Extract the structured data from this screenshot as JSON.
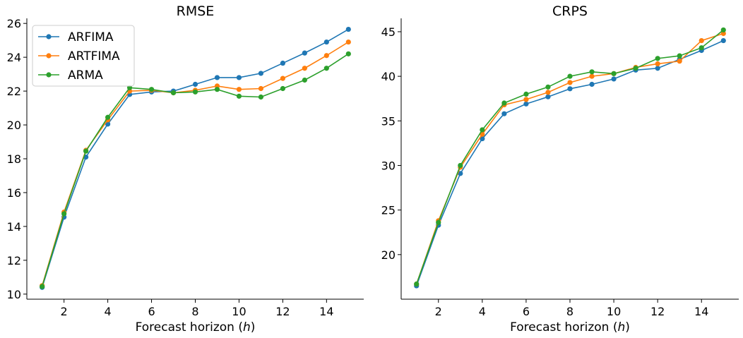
{
  "chart_data": [
    {
      "type": "line",
      "title": "RMSE",
      "xlabel": "Forecast horizon",
      "xlabel_var": "h",
      "ylabel": "",
      "xlim": [
        0.3,
        15.7
      ],
      "ylim": [
        9.7,
        26.3
      ],
      "xticks": [
        2,
        4,
        6,
        8,
        10,
        12,
        14
      ],
      "yticks": [
        10,
        12,
        14,
        16,
        18,
        20,
        22,
        24,
        26
      ],
      "x": [
        1,
        2,
        3,
        4,
        5,
        6,
        7,
        8,
        9,
        10,
        11,
        12,
        13,
        14,
        15
      ],
      "legend_position": "upper-left",
      "series": [
        {
          "name": "ARFIMA",
          "color": "#1f77b4",
          "values": [
            10.4,
            14.55,
            18.1,
            20.05,
            21.8,
            21.95,
            22.0,
            22.4,
            22.8,
            22.8,
            23.05,
            23.65,
            24.25,
            24.9,
            25.65
          ]
        },
        {
          "name": "ARTFIMA",
          "color": "#ff7f0e",
          "values": [
            10.5,
            14.85,
            18.5,
            20.3,
            22.0,
            22.05,
            21.9,
            22.05,
            22.3,
            22.1,
            22.15,
            22.75,
            23.35,
            24.1,
            24.9
          ]
        },
        {
          "name": "ARMA",
          "color": "#2ca02c",
          "values": [
            10.45,
            14.75,
            18.45,
            20.45,
            22.2,
            22.1,
            21.9,
            21.95,
            22.1,
            21.7,
            21.65,
            22.15,
            22.65,
            23.35,
            24.2
          ]
        }
      ]
    },
    {
      "type": "line",
      "title": "CRPS",
      "xlabel": "Forecast horizon",
      "xlabel_var": "h",
      "ylabel": "",
      "xlim": [
        0.3,
        15.7
      ],
      "ylim": [
        15.0,
        46.5
      ],
      "xticks": [
        2,
        4,
        6,
        8,
        10,
        12,
        14
      ],
      "yticks": [
        20,
        25,
        30,
        35,
        40,
        45
      ],
      "x": [
        1,
        2,
        3,
        4,
        5,
        6,
        7,
        8,
        9,
        10,
        11,
        12,
        13,
        14,
        15
      ],
      "legend_position": "none",
      "series": [
        {
          "name": "ARFIMA",
          "color": "#1f77b4",
          "values": [
            16.5,
            23.3,
            29.1,
            33.0,
            35.8,
            36.9,
            37.7,
            38.6,
            39.1,
            39.7,
            40.7,
            40.9,
            41.9,
            42.9,
            44.0
          ]
        },
        {
          "name": "ARTFIMA",
          "color": "#ff7f0e",
          "values": [
            16.7,
            23.8,
            29.8,
            33.5,
            36.8,
            37.4,
            38.2,
            39.3,
            40.0,
            40.3,
            41.0,
            41.4,
            41.7,
            44.0,
            44.8
          ]
        },
        {
          "name": "ARMA",
          "color": "#2ca02c",
          "values": [
            16.7,
            23.6,
            30.0,
            34.0,
            37.0,
            38.0,
            38.8,
            40.0,
            40.5,
            40.3,
            40.9,
            42.0,
            42.3,
            43.2,
            45.2
          ]
        }
      ]
    }
  ]
}
